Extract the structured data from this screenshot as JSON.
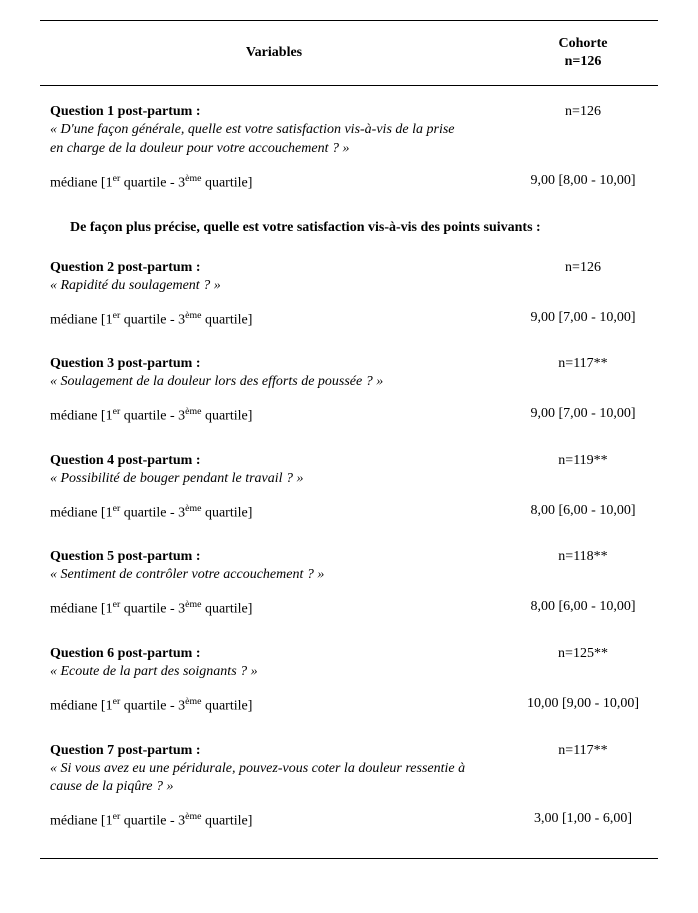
{
  "header": {
    "left_label": "Variables",
    "right_line1": "Cohorte",
    "right_line2": "n=126"
  },
  "section_heading": "De façon plus précise, quelle est votre satisfaction vis-à-vis des points suivants :",
  "mediane_label_prefix": "médiane [1",
  "mediane_label_sup1": "er",
  "mediane_label_mid": " quartile - 3",
  "mediane_label_sup2": "ème",
  "mediane_label_suffix": " quartile]",
  "questions": [
    {
      "title": "Question 1 post-partum :",
      "desc": "« D'une façon générale, quelle est votre satisfaction vis-à-vis de la prise en charge de la douleur pour votre accouchement ? »",
      "n": "n=126",
      "mediane": "9,00 [8,00 - 10,00]",
      "after_heading": false
    },
    {
      "title": "Question 2 post-partum :",
      "desc": "« Rapidité du soulagement ? »",
      "n": "n=126",
      "mediane": "9,00 [7,00 - 10,00]",
      "after_heading": true
    },
    {
      "title": "Question 3 post-partum :",
      "desc": "« Soulagement de la douleur lors des efforts de poussée ? »",
      "n": "n=117**",
      "mediane": "9,00 [7,00 - 10,00]",
      "after_heading": false
    },
    {
      "title": "Question 4 post-partum :",
      "desc": "« Possibilité de bouger pendant le travail ? »",
      "n": "n=119**",
      "mediane": "8,00 [6,00 - 10,00]",
      "after_heading": false
    },
    {
      "title": "Question 5 post-partum :",
      "desc": "« Sentiment de contrôler votre accouchement ? »",
      "n": "n=118**",
      "mediane": "8,00 [6,00 - 10,00]",
      "after_heading": false
    },
    {
      "title": "Question 6 post-partum :",
      "desc": "« Ecoute de la part des soignants ? »",
      "n": "n=125**",
      "mediane": "10,00 [9,00 - 10,00]",
      "after_heading": false
    },
    {
      "title": "Question 7 post-partum :",
      "desc": "« Si vous avez eu une péridurale, pouvez-vous coter la douleur ressentie à cause de la piqûre ? »",
      "n": "n=117**",
      "mediane": "3,00 [1,00 - 6,00]",
      "after_heading": false
    }
  ]
}
